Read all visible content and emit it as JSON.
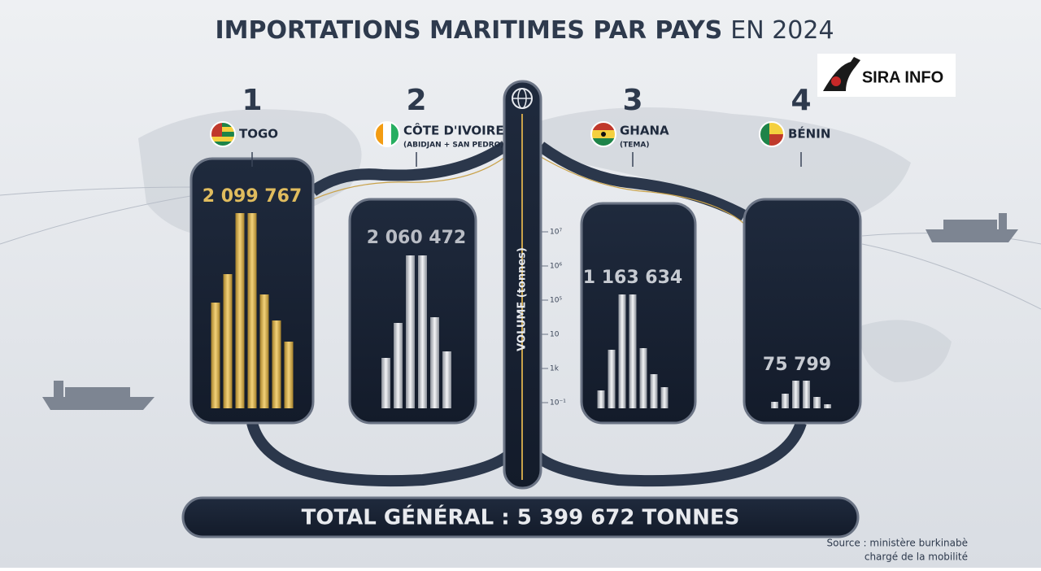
{
  "header": {
    "title": "IMPORTATIONS MARITIMES PAR PAYS",
    "title_year": "EN 2024"
  },
  "logo": {
    "text": "SIRA INFO"
  },
  "countries": [
    {
      "rank": "1",
      "name": "TOGO",
      "value": "2 099 767"
    },
    {
      "rank": "2",
      "name": "CÔTE D'IVOIRE",
      "detail": "(ABIDJAN + SAN PEDRO)",
      "value": "2 060 472"
    },
    {
      "rank": "3",
      "name": "GHANA",
      "detail": "(TEMA)",
      "value": "1 163 634"
    },
    {
      "rank": "4",
      "name": "BÉNIN",
      "value": "75 799"
    }
  ],
  "scale": {
    "label": "VOLUME (tonnes)",
    "ticks": [
      "10⁷",
      "10⁶",
      "10⁵",
      "10",
      "1k",
      "10⁻¹"
    ]
  },
  "total": {
    "text": "TOTAL GÉNÉRAL : 5 399 672 TONNES"
  },
  "source": {
    "line1": "Source : ministère burkinabè",
    "line2": "chargé de la mobilité"
  }
}
